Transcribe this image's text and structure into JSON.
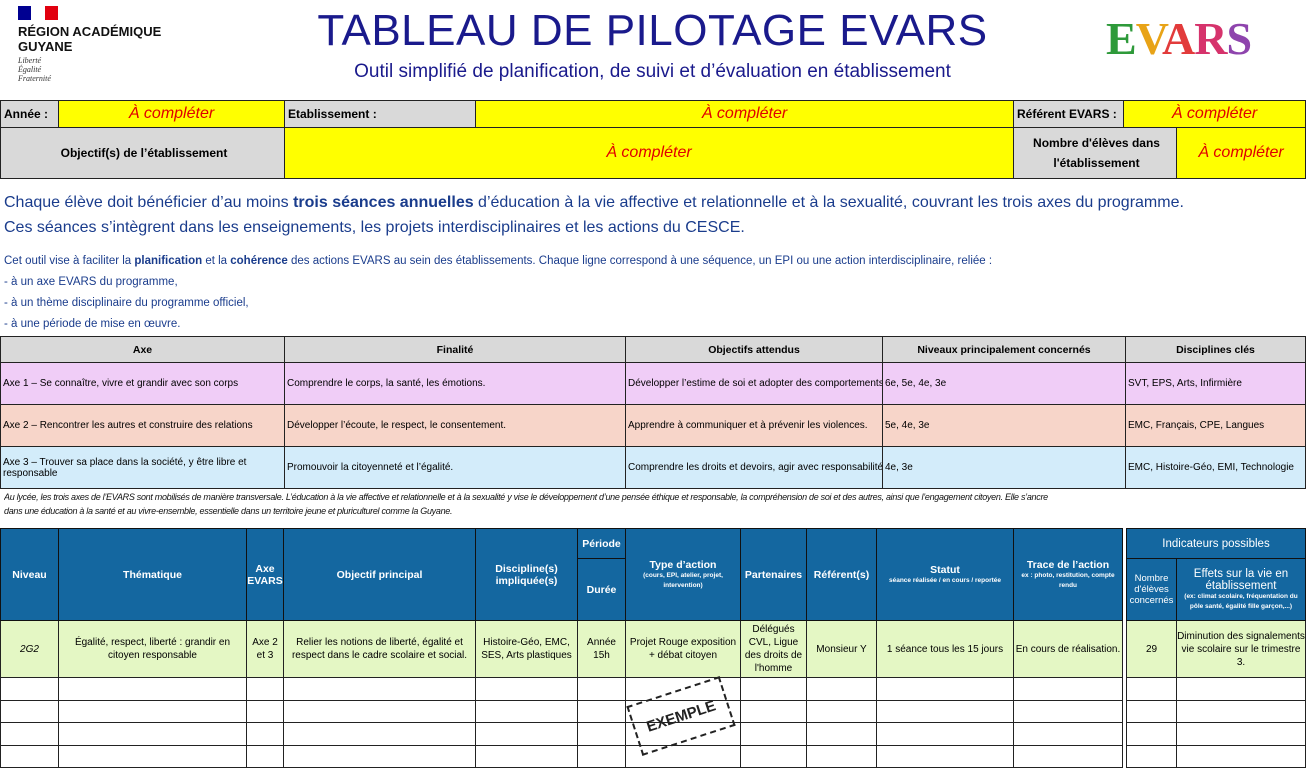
{
  "header": {
    "org_line1": "RÉGION ACADÉMIQUE",
    "org_line2": "GUYANE",
    "devise": [
      "Liberté",
      "Égalité",
      "Fraternité"
    ],
    "title": "TABLEAU DE PILOTAGE EVARS",
    "subtitle": "Outil simplifié de planification, de suivi et d’évaluation en établissement",
    "logo": "EVARS",
    "flag_colors": [
      "#000091",
      "#ffffff",
      "#e1000f"
    ]
  },
  "info": {
    "annee_label": "Année :",
    "etab_label": "Etablissement :",
    "referent_label": "Référent EVARS :",
    "objectif_label": "Objectif(s) de l’établissement",
    "nb_eleves_label": "Nombre d'élèves dans l'établissement",
    "placeholder": "À compléter"
  },
  "intro": {
    "p1_a": "Chaque élève doit bénéficier d’au moins ",
    "p1_b": "trois séances annuelles",
    "p1_c": " d’éducation à la vie affective et relationnelle et à la sexualité, couvrant les trois axes du programme.",
    "p2": "Ces séances s’intègrent dans les enseignements, les projets interdisciplinaires et les actions du CESCE.",
    "s1_a": "Cet outil vise à faciliter la ",
    "s1_b": "planification",
    "s1_c": " et la ",
    "s1_d": "cohérence",
    "s1_e": " des actions EVARS au sein des établissements. Chaque ligne correspond à une séquence, un EPI ou une action interdisciplinaire, reliée :",
    "bullets": [
      "- à un axe EVARS du programme,",
      "- à un thème disciplinaire du programme officiel,",
      "- à une période de mise en œuvre."
    ]
  },
  "axes": {
    "headers": [
      "Axe",
      "Finalité",
      "Objectifs attendus",
      "Niveaux principalement concernés",
      "Disciplines clés"
    ],
    "rows": [
      [
        "Axe 1 – Se connaître, vivre et grandir avec son corps",
        "Comprendre le corps, la santé, les émotions.",
        "Développer l’estime de soi et adopter des comportements",
        "6e, 5e, 4e, 3e",
        "SVT, EPS, Arts, Infirmière"
      ],
      [
        "Axe 2 – Rencontrer les autres et construire des relations",
        "Développer l’écoute, le respect, le consentement.",
        "Apprendre à communiquer et à prévenir les violences.",
        "5e, 4e, 3e",
        "EMC, Français, CPE, Langues"
      ],
      [
        "Axe 3 – Trouver sa place dans la société, y être libre et responsable",
        "Promouvoir la citoyenneté et l’égalité.",
        "Comprendre les droits et devoirs, agir avec responsabilité",
        "4e, 3e",
        "EMC, Histoire-Géo, EMI, Technologie"
      ]
    ]
  },
  "note": {
    "line1": "Au lycée, les trois axes de l’EVARS sont mobilisés de manière transversale. L’éducation à la vie affective et relationnelle et à la sexualité y vise le développement d’une pensée éthique et responsable, la compréhension de soi et des autres, ainsi que l’engagement citoyen. Elle s’ancre",
    "line2": "dans une éducation à la santé et au vivre-ensemble, essentielle dans un territoire jeune et pluriculturel comme la Guyane."
  },
  "main": {
    "headers": {
      "niveau": "Niveau",
      "thematique": "Thématique",
      "axe": "Axe EVARS",
      "objectif": "Objectif principal",
      "disciplines": "Discipline(s) impliquée(s)",
      "periode": "Période",
      "duree": "Durée",
      "type": "Type d’action",
      "type_sub": "(cours, EPI, atelier, projet, intervention)",
      "partenaires": "Partenaires",
      "referents": "Référent(s)",
      "statut": "Statut",
      "statut_sub": "séance réalisée / en cours / reportée",
      "trace": "Trace de l’action",
      "trace_sub": "ex : photo, restitution, compte rendu",
      "indicateurs": "Indicateurs possibles",
      "nb_eleves": "Nombre d'élèves concernés",
      "effets": "Effets sur la vie en établissement",
      "effets_sub": "(ex: climat scolaire, fréquentation du pôle santé, égalité fille garçon,...)"
    },
    "example": {
      "niveau": "2G2",
      "thematique": "Égalité, respect, liberté : grandir en citoyen responsable",
      "axe": "Axe 2 et 3",
      "objectif": "Relier les notions de liberté, égalité et respect dans le cadre scolaire et social.",
      "disciplines": "Histoire-Géo, EMC, SES, Arts plastiques",
      "duree": "Année 15h",
      "type": "Projet Rouge exposition + débat citoyen",
      "partenaires": "Délégués CVL, Ligue des droits de l'homme",
      "referents": "Monsieur Y",
      "statut": "1 séance tous les 15 jours",
      "trace": "En cours de réalisation.",
      "nb_eleves": "29",
      "effets": "Diminution des signalements vie scolaire sur le trimestre 3.",
      "stamp": "EXEMPLE"
    },
    "header_color": "#1467a0",
    "example_row_color": "#e4f7c4"
  }
}
